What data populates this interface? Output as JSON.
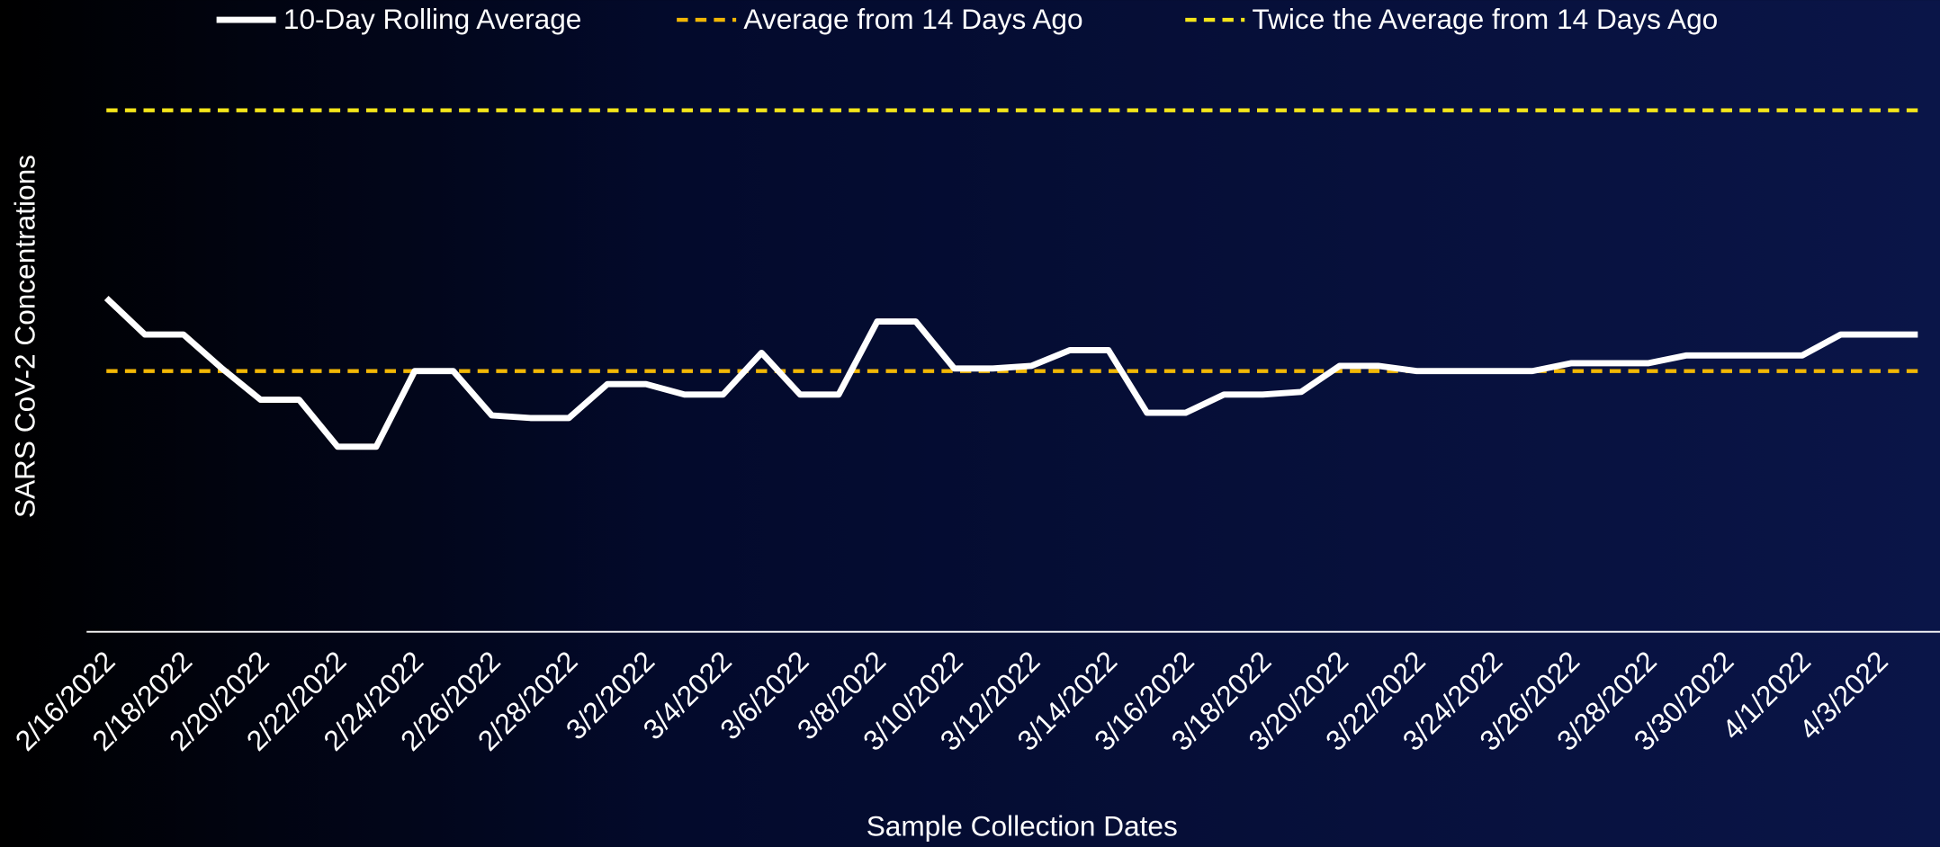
{
  "chart_data": {
    "type": "line",
    "x_label": "Sample Collection Dates",
    "y_label": "SARS CoV-2 Concentrations",
    "categories": [
      "2/16/2022",
      null,
      "2/18/2022",
      null,
      "2/20/2022",
      null,
      "2/22/2022",
      null,
      "2/24/2022",
      null,
      "2/26/2022",
      null,
      "2/28/2022",
      null,
      "3/2/2022",
      null,
      "3/4/2022",
      null,
      "3/6/2022",
      null,
      "3/8/2022",
      null,
      "3/10/2022",
      null,
      "3/12/2022",
      null,
      "3/14/2022",
      null,
      "3/16/2022",
      null,
      "3/18/2022",
      null,
      "3/20/2022",
      null,
      "3/22/2022",
      null,
      "3/24/2022",
      null,
      "3/26/2022",
      null,
      "3/28/2022",
      null,
      "3/30/2022",
      null,
      "4/1/2022",
      null,
      "4/3/2022",
      null
    ],
    "ylim": [
      0,
      220
    ],
    "legend": "top",
    "series": [
      {
        "name": "10-Day Rolling Average",
        "color": "#ffffff",
        "dashed": false,
        "values": [
          128,
          114,
          114,
          101,
          89,
          89,
          71,
          71,
          100,
          100,
          83,
          82,
          82,
          95,
          95,
          91,
          91,
          107,
          91,
          91,
          119,
          119,
          101,
          101,
          102,
          108,
          108,
          84,
          84,
          91,
          91,
          92,
          102,
          102,
          100,
          100,
          100,
          100,
          103,
          103,
          103,
          106,
          106,
          106,
          106,
          114,
          114,
          114
        ]
      },
      {
        "name": "Average from 14 Days Ago",
        "color": "#f2b705",
        "dashed": true,
        "values": [
          100,
          100,
          100,
          100,
          100,
          100,
          100,
          100,
          100,
          100,
          100,
          100,
          100,
          100,
          100,
          100,
          100,
          100,
          100,
          100,
          100,
          100,
          100,
          100,
          100,
          100,
          100,
          100,
          100,
          100,
          100,
          100,
          100,
          100,
          100,
          100,
          100,
          100,
          100,
          100,
          100,
          100,
          100,
          100,
          100,
          100,
          100,
          100
        ]
      },
      {
        "name": "Twice the Average from 14 Days Ago",
        "color": "#f5e61a",
        "dashed": true,
        "values": [
          200,
          200,
          200,
          200,
          200,
          200,
          200,
          200,
          200,
          200,
          200,
          200,
          200,
          200,
          200,
          200,
          200,
          200,
          200,
          200,
          200,
          200,
          200,
          200,
          200,
          200,
          200,
          200,
          200,
          200,
          200,
          200,
          200,
          200,
          200,
          200,
          200,
          200,
          200,
          200,
          200,
          200,
          200,
          200,
          200,
          200,
          200,
          200
        ]
      }
    ]
  }
}
